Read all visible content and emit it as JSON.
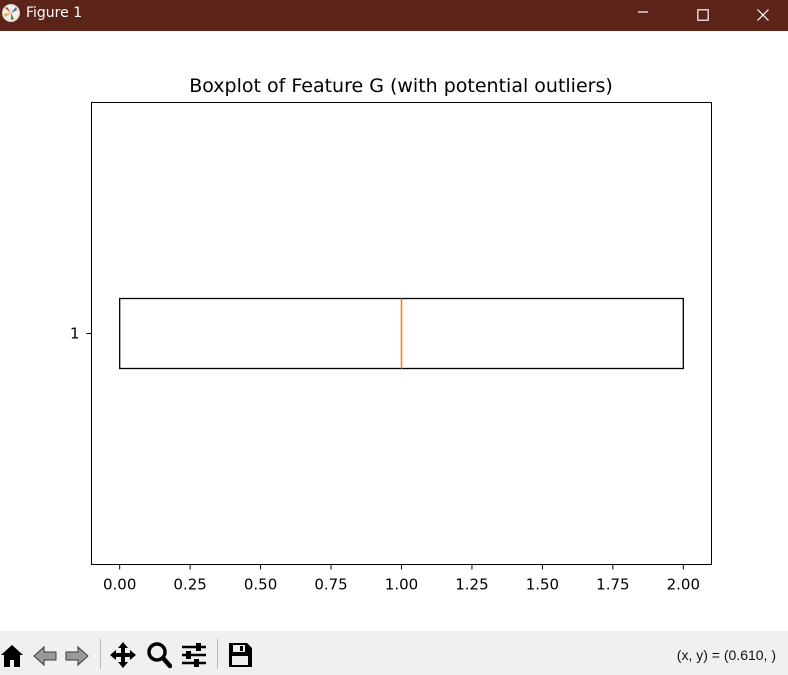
{
  "window": {
    "title": "Figure 1",
    "titlebar_color": "#5c2318"
  },
  "chart_data": {
    "type": "boxplot",
    "orientation": "horizontal",
    "title": "Boxplot of Feature G (with potential outliers)",
    "categories": [
      "1"
    ],
    "boxes": [
      {
        "whisker_low": 0.0,
        "q1": 0.0,
        "median": 1.0,
        "q3": 2.0,
        "whisker_high": 2.0,
        "outliers": []
      }
    ],
    "xlim": [
      -0.1,
      2.1
    ],
    "ylim": [
      0.5,
      1.5
    ],
    "xticks": [
      0.0,
      0.25,
      0.5,
      0.75,
      1.0,
      1.25,
      1.5,
      1.75,
      2.0
    ],
    "xtick_labels": [
      "0.00",
      "0.25",
      "0.50",
      "0.75",
      "1.00",
      "1.25",
      "1.50",
      "1.75",
      "2.00"
    ],
    "ytick_labels": [
      "1"
    ],
    "box_color": "#000000",
    "median_color": "#ff7f0e",
    "grid": false
  },
  "toolbar": {
    "tools": [
      {
        "name": "home",
        "icon": "home-icon"
      },
      {
        "name": "back",
        "icon": "back-arrow-icon"
      },
      {
        "name": "forward",
        "icon": "forward-arrow-icon"
      },
      {
        "name": "pan",
        "icon": "move-icon"
      },
      {
        "name": "zoom",
        "icon": "magnifier-icon"
      },
      {
        "name": "configure",
        "icon": "sliders-icon"
      },
      {
        "name": "save",
        "icon": "floppy-icon"
      }
    ],
    "coords": "(x, y) = (0.610, )"
  }
}
